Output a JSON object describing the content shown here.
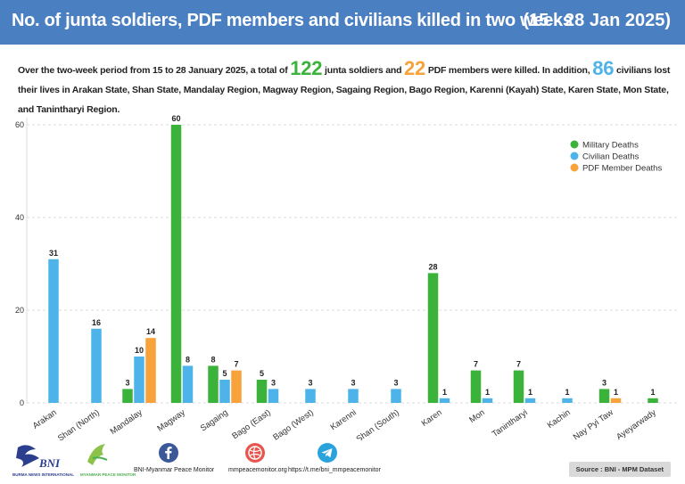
{
  "header": {
    "title": "No. of junta soldiers, PDF members and civilians killed in two weeks",
    "dates": "(15 - 28 Jan 2025)"
  },
  "summary": {
    "part1": "Over the two-week period from 15 to 28 January 2025, a total of",
    "military_total": "122",
    "part2": "junta soldiers and",
    "pdf_total": "22",
    "part3": "PDF members were killed. In addition,",
    "civilian_total": "86",
    "part4": "civilians lost their lives in Arakan State, Shan State, Mandalay Region, Magway Region, Sagaing Region, Bago Region, Karenni (Kayah) State, Karen State, Mon State, and Tanintharyi Region."
  },
  "colors": {
    "military": "#3bb33b",
    "civilian": "#4db3e8",
    "pdf": "#f7a23a"
  },
  "chart_data": {
    "type": "bar",
    "title": "",
    "xlabel": "",
    "ylabel": "",
    "ylim": [
      0,
      62
    ],
    "yticks": [
      0,
      20,
      40,
      60
    ],
    "categories": [
      "Arakan",
      "Shan (North)",
      "Mandalay",
      "Magway",
      "Sagaing",
      "Bago (East)",
      "Bago (West)",
      "Karenni",
      "Shan (South)",
      "Karen",
      "Mon",
      "Tanintharyi",
      "Kachin",
      "Nay Pyi Taw",
      "Ayeyarwady"
    ],
    "series": [
      {
        "name": "Military Deaths",
        "values": [
          null,
          null,
          3,
          60,
          8,
          5,
          null,
          null,
          null,
          28,
          7,
          7,
          null,
          3,
          1
        ]
      },
      {
        "name": "Civilian Deaths",
        "values": [
          31,
          16,
          10,
          8,
          5,
          3,
          3,
          3,
          3,
          1,
          1,
          1,
          1,
          null,
          null
        ]
      },
      {
        "name": "PDF Member Deaths",
        "values": [
          null,
          null,
          14,
          null,
          7,
          null,
          null,
          null,
          null,
          null,
          null,
          null,
          null,
          1,
          null
        ]
      }
    ],
    "legend_position": "top-right"
  },
  "footer": {
    "bni_logo": "BNI",
    "bni_sub": "BURMA NEWS INTERNATIONAL",
    "mpm_sub": "MYANMAR PEACE MONITOR",
    "facebook_label": "BNI-Myanmar Peace Monitor",
    "website_label": "mmpeacemonitor.org",
    "telegram_label": "https://t.me/bni_mmpeacemonitor",
    "source": "Source : BNI - MPM Dataset"
  }
}
